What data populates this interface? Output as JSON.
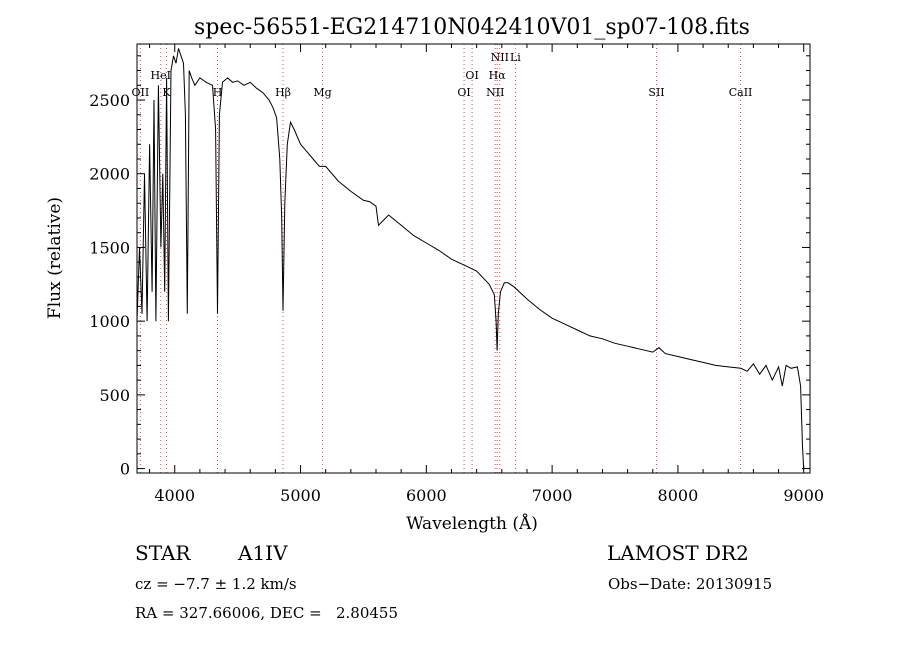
{
  "chart_data": {
    "type": "line",
    "title": "spec-56551-EG214710N042410V01_sp07-108.fits",
    "xlabel": "Wavelength (Å)",
    "ylabel": "Flux (relative)",
    "xlim": [
      3700,
      9050
    ],
    "ylim": [
      -30,
      2880
    ],
    "x_ticks": [
      4000,
      5000,
      6000,
      7000,
      8000,
      9000
    ],
    "y_ticks": [
      0,
      500,
      1000,
      1500,
      2000,
      2500
    ],
    "grid": false,
    "series": [
      {
        "x": [
          3700,
          3720,
          3740,
          3760,
          3780,
          3800,
          3820,
          3835,
          3850,
          3870,
          3890,
          3905,
          3920,
          3935,
          3950,
          3970,
          3990,
          4010,
          4030,
          4050,
          4070,
          4085,
          4100,
          4115,
          4135,
          4160,
          4200,
          4250,
          4300,
          4325,
          4340,
          4355,
          4380,
          4420,
          4460,
          4500,
          4550,
          4600,
          4650,
          4700,
          4750,
          4780,
          4810,
          4835,
          4850,
          4861,
          4875,
          4895,
          4920,
          4950,
          5000,
          5050,
          5100,
          5150,
          5200,
          5300,
          5400,
          5500,
          5550,
          5600,
          5620,
          5700,
          5800,
          5900,
          6000,
          6100,
          6200,
          6300,
          6400,
          6500,
          6540,
          6555,
          6563,
          6572,
          6590,
          6620,
          6650,
          6700,
          6800,
          6900,
          7000,
          7100,
          7200,
          7300,
          7400,
          7500,
          7600,
          7700,
          7800,
          7850,
          7900,
          8000,
          8100,
          8200,
          8300,
          8400,
          8500,
          8550,
          8600,
          8650,
          8700,
          8750,
          8800,
          8830,
          8860,
          8900,
          8950,
          8975,
          8990,
          9000
        ],
        "y": [
          1000,
          1500,
          1050,
          2000,
          1000,
          2200,
          1200,
          2500,
          1000,
          2600,
          1500,
          2000,
          1200,
          2650,
          1000,
          2700,
          2800,
          2750,
          2850,
          2800,
          2750,
          2400,
          1050,
          2700,
          2650,
          2600,
          2650,
          2620,
          2600,
          2300,
          1050,
          2400,
          2620,
          2650,
          2620,
          2630,
          2600,
          2620,
          2580,
          2550,
          2500,
          2450,
          2380,
          2100,
          1700,
          1070,
          1800,
          2200,
          2350,
          2300,
          2200,
          2150,
          2100,
          2050,
          2050,
          1950,
          1880,
          1820,
          1810,
          1780,
          1650,
          1720,
          1650,
          1580,
          1530,
          1480,
          1420,
          1380,
          1340,
          1250,
          1180,
          1000,
          800,
          1050,
          1200,
          1260,
          1260,
          1230,
          1150,
          1080,
          1020,
          980,
          940,
          900,
          880,
          850,
          830,
          810,
          790,
          820,
          780,
          760,
          740,
          720,
          700,
          690,
          680,
          660,
          710,
          640,
          700,
          600,
          690,
          560,
          700,
          680,
          690,
          560,
          150,
          0
        ]
      }
    ],
    "lines": [
      {
        "label": "OII",
        "x": 3727
      },
      {
        "label": "HeI",
        "x": 3889
      },
      {
        "label": "K",
        "x": 3934
      },
      {
        "label": "H",
        "x": 4340
      },
      {
        "label": "Hβ",
        "x": 4861
      },
      {
        "label": "Mg",
        "x": 5175
      },
      {
        "label": "OI",
        "x": 6300
      },
      {
        "label": "OI",
        "x": 6364
      },
      {
        "label": "NII",
        "x": 6548
      },
      {
        "label": "Hα",
        "x": 6563
      },
      {
        "label": "NII",
        "x": 6584
      },
      {
        "label": "Li",
        "x": 6708
      },
      {
        "label": "SII",
        "x": 7830
      },
      {
        "label": "CaII",
        "x": 8498
      }
    ]
  },
  "info": {
    "object_class": "STAR",
    "subclass": "A1IV",
    "survey": "LAMOST DR2",
    "cz": "cz = −7.7 ± 1.2 km/s",
    "obs_date": "Obs−Date: 20130915",
    "coords": "RA = 327.66006, DEC =   2.80455"
  },
  "colors": {
    "axis": "#000000",
    "spectrum": "#000000",
    "line_marker": "#e05050"
  }
}
